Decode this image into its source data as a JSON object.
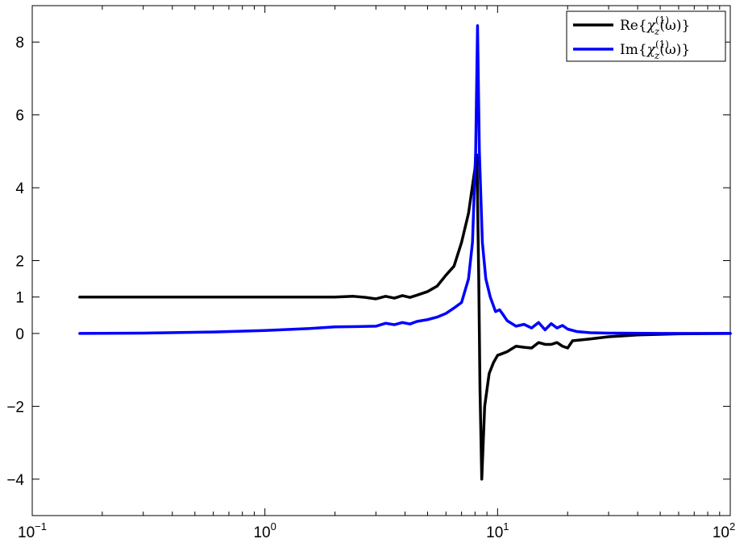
{
  "chart_data": {
    "type": "line",
    "x_scale": "log",
    "xlim": [
      0.1,
      100
    ],
    "ylim": [
      -5,
      9
    ],
    "x_ticks": [
      {
        "value": 0.1,
        "base": "10",
        "exp": "−1"
      },
      {
        "value": 1,
        "base": "10",
        "exp": "0"
      },
      {
        "value": 10,
        "base": "10",
        "exp": "1"
      },
      {
        "value": 100,
        "base": "10",
        "exp": "2"
      }
    ],
    "y_ticks": [
      {
        "value": 8,
        "label": "8"
      },
      {
        "value": 6,
        "label": "6"
      },
      {
        "value": 4,
        "label": "4"
      },
      {
        "value": 2,
        "label": "2"
      },
      {
        "value": 1,
        "label": "1"
      },
      {
        "value": 0,
        "label": "0"
      },
      {
        "value": -2,
        "label": "−2"
      },
      {
        "value": -4,
        "label": "−4"
      }
    ],
    "grid": false,
    "legend_position": "top-right",
    "series": [
      {
        "name": "Re{χz(1)(ω)}",
        "legend": {
          "prefix": "Re{",
          "symbol": "χ",
          "sub": "z",
          "sup": "(1)",
          "suffix": "(ω)}"
        },
        "color": "#000000",
        "points": [
          [
            0.16,
            1.0
          ],
          [
            0.3,
            1.0
          ],
          [
            0.6,
            1.0
          ],
          [
            1.0,
            1.0
          ],
          [
            1.5,
            1.0
          ],
          [
            2.0,
            1.0
          ],
          [
            2.4,
            1.02
          ],
          [
            2.7,
            0.99
          ],
          [
            3.0,
            0.95
          ],
          [
            3.3,
            1.02
          ],
          [
            3.6,
            0.97
          ],
          [
            3.9,
            1.04
          ],
          [
            4.2,
            0.99
          ],
          [
            4.5,
            1.05
          ],
          [
            5.0,
            1.15
          ],
          [
            5.5,
            1.3
          ],
          [
            6.0,
            1.6
          ],
          [
            6.5,
            1.85
          ],
          [
            7.0,
            2.5
          ],
          [
            7.5,
            3.3
          ],
          [
            7.9,
            4.3
          ],
          [
            8.15,
            4.9
          ],
          [
            8.3,
            1.5
          ],
          [
            8.4,
            -1.5
          ],
          [
            8.55,
            -4.0
          ],
          [
            8.8,
            -2.0
          ],
          [
            9.2,
            -1.1
          ],
          [
            9.6,
            -0.8
          ],
          [
            10.0,
            -0.6
          ],
          [
            10.5,
            -0.55
          ],
          [
            11.0,
            -0.5
          ],
          [
            12.0,
            -0.35
          ],
          [
            13.0,
            -0.38
          ],
          [
            14.0,
            -0.4
          ],
          [
            15.0,
            -0.25
          ],
          [
            16.0,
            -0.3
          ],
          [
            17.0,
            -0.3
          ],
          [
            18.0,
            -0.25
          ],
          [
            19.0,
            -0.35
          ],
          [
            20.0,
            -0.4
          ],
          [
            21.0,
            -0.2
          ],
          [
            25.0,
            -0.15
          ],
          [
            30.0,
            -0.09
          ],
          [
            40.0,
            -0.04
          ],
          [
            60.0,
            -0.01
          ],
          [
            100.0,
            0.0
          ]
        ]
      },
      {
        "name": "Im{χz(1)(ω)}",
        "legend": {
          "prefix": "Im{",
          "symbol": "χ",
          "sub": "z",
          "sup": "(1)",
          "suffix": "(ω)}"
        },
        "color": "#0000ff",
        "points": [
          [
            0.16,
            0.0
          ],
          [
            0.3,
            0.01
          ],
          [
            0.6,
            0.04
          ],
          [
            1.0,
            0.08
          ],
          [
            1.5,
            0.13
          ],
          [
            2.0,
            0.18
          ],
          [
            2.5,
            0.19
          ],
          [
            3.0,
            0.2
          ],
          [
            3.3,
            0.28
          ],
          [
            3.6,
            0.24
          ],
          [
            3.9,
            0.3
          ],
          [
            4.2,
            0.26
          ],
          [
            4.5,
            0.33
          ],
          [
            5.0,
            0.38
          ],
          [
            5.5,
            0.45
          ],
          [
            6.0,
            0.55
          ],
          [
            6.5,
            0.7
          ],
          [
            7.0,
            0.85
          ],
          [
            7.5,
            1.5
          ],
          [
            7.8,
            2.5
          ],
          [
            8.05,
            5.0
          ],
          [
            8.2,
            8.45
          ],
          [
            8.35,
            5.0
          ],
          [
            8.6,
            2.5
          ],
          [
            8.9,
            1.5
          ],
          [
            9.3,
            1.0
          ],
          [
            9.8,
            0.6
          ],
          [
            10.2,
            0.65
          ],
          [
            10.6,
            0.5
          ],
          [
            11.0,
            0.35
          ],
          [
            12.0,
            0.2
          ],
          [
            13.0,
            0.25
          ],
          [
            14.0,
            0.15
          ],
          [
            15.0,
            0.3
          ],
          [
            16.0,
            0.1
          ],
          [
            17.0,
            0.27
          ],
          [
            18.0,
            0.15
          ],
          [
            19.0,
            0.22
          ],
          [
            20.0,
            0.12
          ],
          [
            22.0,
            0.05
          ],
          [
            25.0,
            0.02
          ],
          [
            30.0,
            0.01
          ],
          [
            50.0,
            0.0
          ],
          [
            100.0,
            0.0
          ]
        ]
      }
    ]
  }
}
